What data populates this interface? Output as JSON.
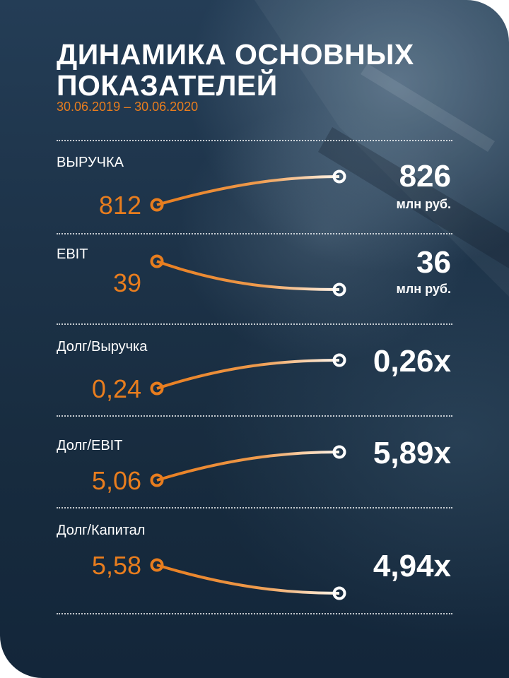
{
  "header": {
    "title_line1": "ДИНАМИКА ОСНОВНЫХ",
    "title_line2": "ПОКАЗАТЕЛЕЙ",
    "period": "30.06.2019 – 30.06.2020"
  },
  "colors": {
    "accent": "#e87d1e",
    "background": "#1d3349",
    "text": "#ffffff"
  },
  "metrics": [
    {
      "label": "ВЫРУЧКА",
      "old": "812",
      "new": "826",
      "unit": "млн руб."
    },
    {
      "label": "EBIT",
      "old": "39",
      "new": "36",
      "unit": "млн руб."
    },
    {
      "label": "Долг/Выручка",
      "old": "0,24",
      "new": "0,26x",
      "unit": ""
    },
    {
      "label": "Долг/EBIT",
      "old": "5,06",
      "new": "5,89x",
      "unit": ""
    },
    {
      "label": "Долг/Капитал",
      "old": "5,58",
      "new": "4,94x",
      "unit": ""
    }
  ]
}
